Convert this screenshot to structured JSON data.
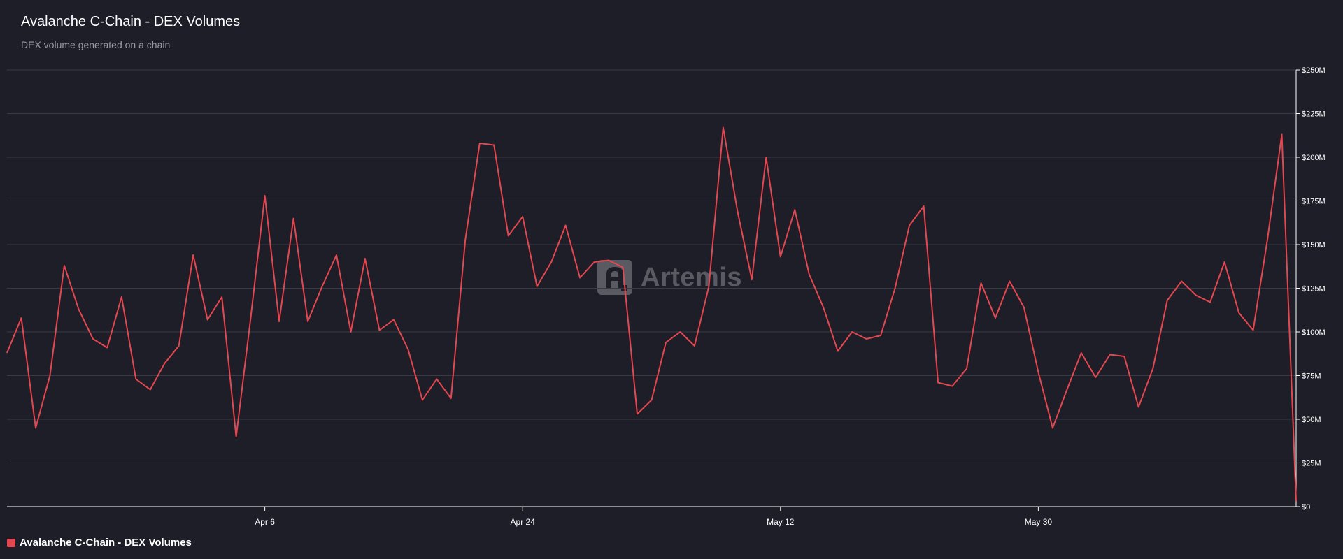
{
  "header": {
    "title": "Avalanche C-Chain - DEX Volumes",
    "subtitle": "DEX volume generated on a chain"
  },
  "watermark": {
    "text": "Artemis",
    "icon": "artemis-logo-icon"
  },
  "legend": {
    "label": "Avalanche C-Chain - DEX Volumes"
  },
  "colors": {
    "background": "#1e1e28",
    "series": "#e4474f",
    "grid": "#3a3a46",
    "axis": "#ffffff"
  },
  "chart_data": {
    "type": "line",
    "title": "Avalanche C-Chain - DEX Volumes",
    "subtitle": "DEX volume generated on a chain",
    "xlabel": "",
    "ylabel": "",
    "ylim": [
      0,
      250
    ],
    "y_unit": "$M",
    "y_ticks": [
      0,
      25,
      50,
      75,
      100,
      125,
      150,
      175,
      200,
      225,
      250
    ],
    "y_tick_labels": [
      "$0",
      "$25M",
      "$50M",
      "$75M",
      "$100M",
      "$125M",
      "$150M",
      "$175M",
      "$200M",
      "$225M",
      "$250M"
    ],
    "x_ticks": [
      {
        "label": "Apr 6",
        "index": 18
      },
      {
        "label": "Apr 24",
        "index": 36
      },
      {
        "label": "May 12",
        "index": 54
      },
      {
        "label": "May 30",
        "index": 72
      }
    ],
    "grid": true,
    "legend_position": "bottom-left",
    "series": [
      {
        "name": "Avalanche C-Chain - DEX Volumes",
        "values": [
          88,
          108,
          45,
          75,
          138,
          113,
          96,
          91,
          120,
          73,
          67,
          82,
          92,
          144,
          107,
          120,
          40,
          107,
          178,
          106,
          165,
          106,
          126,
          144,
          100,
          142,
          101,
          107,
          90,
          61,
          73,
          62,
          153,
          208,
          207,
          155,
          166,
          126,
          140,
          161,
          131,
          140,
          141,
          137,
          53,
          61,
          94,
          100,
          92,
          126,
          217,
          169,
          130,
          200,
          143,
          170,
          133,
          114,
          89,
          100,
          96,
          98,
          125,
          161,
          172,
          71,
          69,
          79,
          128,
          108,
          129,
          114,
          77,
          45,
          67,
          88,
          74,
          87,
          86,
          57,
          79,
          118,
          129,
          121,
          117,
          140,
          111,
          101,
          153,
          213,
          3
        ]
      }
    ]
  }
}
